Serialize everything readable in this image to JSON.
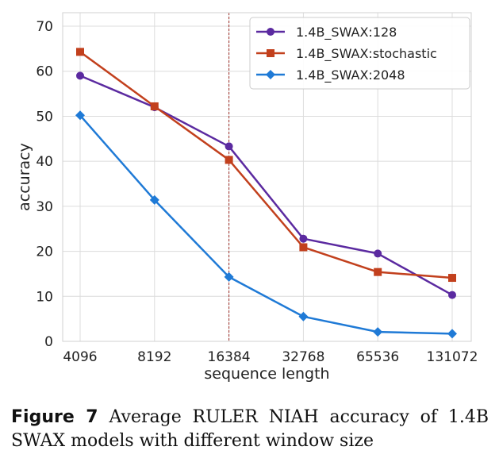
{
  "chart_data": {
    "type": "line",
    "categories": [
      "4096",
      "8192",
      "16384",
      "32768",
      "65536",
      "131072"
    ],
    "series": [
      {
        "name": "1.4B_SWAX:128",
        "color": "#5b2aa0",
        "marker": "circle",
        "values": [
          59,
          52,
          43.3,
          22.8,
          19.5,
          10.3
        ]
      },
      {
        "name": "1.4B_SWAX:stochastic",
        "color": "#c2401d",
        "marker": "square",
        "values": [
          64.3,
          52.2,
          40.3,
          20.9,
          15.4,
          14.1
        ]
      },
      {
        "name": "1.4B_SWAX:2048",
        "color": "#1f7ad6",
        "marker": "diamond",
        "values": [
          50.2,
          31.4,
          14.3,
          5.5,
          2.1,
          1.7
        ]
      }
    ],
    "xlabel": "sequence length",
    "ylabel": "accuracy",
    "ylim": [
      0,
      73
    ],
    "yticks": [
      0,
      10,
      20,
      30,
      40,
      50,
      60,
      70
    ],
    "grid": true,
    "legend_position": "top-right",
    "reference_line": {
      "x_category": "16384",
      "style": "dashed",
      "color": "#a0302a"
    }
  },
  "caption": {
    "label": "Figure 7",
    "text": "Average RULER NIAH accuracy of 1.4B SWAX models with different window size"
  }
}
